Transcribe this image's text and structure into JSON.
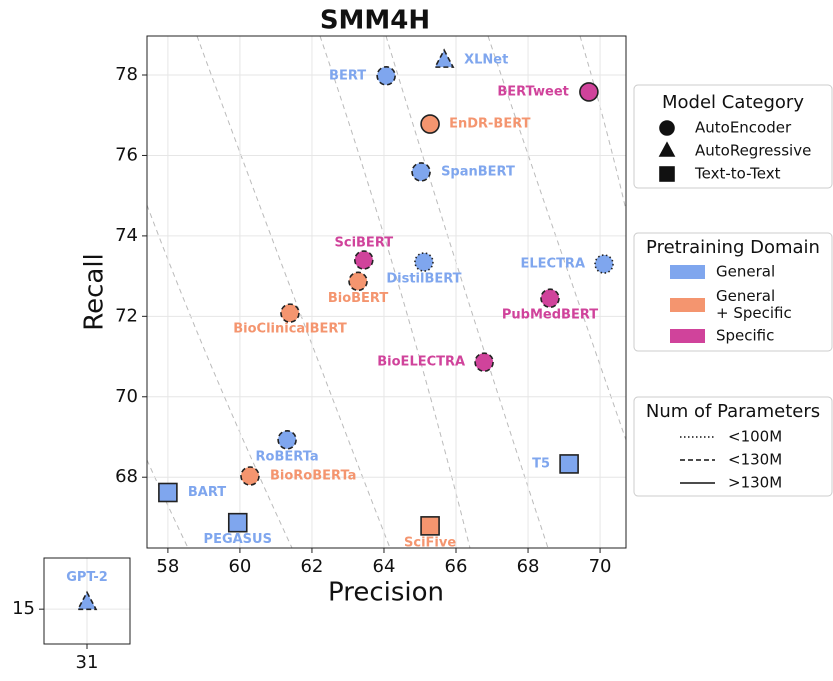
{
  "chart_data": {
    "type": "scatter",
    "title": "SMM4H",
    "xlabel": "Precision",
    "ylabel": "Recall",
    "xlim": [
      57.42,
      70.72
    ],
    "ylim": [
      66.24,
      78.97
    ],
    "xticks": [
      58,
      60,
      62,
      64,
      66,
      68,
      70
    ],
    "yticks": [
      68,
      70,
      72,
      74,
      76,
      78
    ],
    "grid": true,
    "domain_colors": {
      "General": "#7fa6ee",
      "General + Specific": "#f4956f",
      "Specific": "#d0439b"
    },
    "points": [
      {
        "name": "BERT",
        "x": 64.06,
        "y": 77.98,
        "shape": "circle",
        "domain": "General",
        "params": "dashed"
      },
      {
        "name": "XLNet",
        "x": 65.67,
        "y": 78.37,
        "shape": "triangle",
        "domain": "General",
        "params": "dashed"
      },
      {
        "name": "BERTweet",
        "x": 69.69,
        "y": 77.58,
        "shape": "circle",
        "domain": "Specific",
        "params": "solid"
      },
      {
        "name": "EnDR-BERT",
        "x": 65.28,
        "y": 76.78,
        "shape": "circle",
        "domain": "General + Specific",
        "params": "solid"
      },
      {
        "name": "SpanBERT",
        "x": 65.03,
        "y": 75.59,
        "shape": "circle",
        "domain": "General",
        "params": "dashed"
      },
      {
        "name": "SciBERT",
        "x": 63.44,
        "y": 73.4,
        "shape": "circle",
        "domain": "Specific",
        "params": "dashed"
      },
      {
        "name": "DistilBERT",
        "x": 65.11,
        "y": 73.35,
        "shape": "circle",
        "domain": "General",
        "params": "dotted"
      },
      {
        "name": "ELECTRA",
        "x": 70.11,
        "y": 73.3,
        "shape": "circle",
        "domain": "General",
        "params": "dotted"
      },
      {
        "name": "BioBERT",
        "x": 63.28,
        "y": 72.87,
        "shape": "circle",
        "domain": "General + Specific",
        "params": "dashed"
      },
      {
        "name": "PubMedBERT",
        "x": 68.61,
        "y": 72.45,
        "shape": "circle",
        "domain": "Specific",
        "params": "dashed"
      },
      {
        "name": "BioClinicalBERT",
        "x": 61.39,
        "y": 72.08,
        "shape": "circle",
        "domain": "General + Specific",
        "params": "dashed"
      },
      {
        "name": "BioELECTRA",
        "x": 66.78,
        "y": 70.86,
        "shape": "circle",
        "domain": "Specific",
        "params": "dashed"
      },
      {
        "name": "RoBERTa",
        "x": 61.31,
        "y": 68.93,
        "shape": "circle",
        "domain": "General",
        "params": "dashed"
      },
      {
        "name": "BioRoBERTa",
        "x": 60.28,
        "y": 68.03,
        "shape": "circle",
        "domain": "General + Specific",
        "params": "dashed"
      },
      {
        "name": "T5",
        "x": 69.14,
        "y": 68.33,
        "shape": "square",
        "domain": "General",
        "params": "solid"
      },
      {
        "name": "BART",
        "x": 58.0,
        "y": 67.62,
        "shape": "square",
        "domain": "General",
        "params": "solid"
      },
      {
        "name": "PEGASUS",
        "x": 59.94,
        "y": 66.87,
        "shape": "square",
        "domain": "General",
        "params": "solid"
      },
      {
        "name": "SciFive",
        "x": 65.28,
        "y": 66.79,
        "shape": "square",
        "domain": "General + Specific",
        "params": "solid"
      }
    ],
    "inset": {
      "xlim": [
        30,
        32
      ],
      "ylim": [
        14.19,
        16.19
      ],
      "xticks": [
        31
      ],
      "yticks": [
        15
      ],
      "points": [
        {
          "name": "GPT-2",
          "x": 31,
          "y": 15.16,
          "shape": "triangle",
          "domain": "General",
          "params": "dashed"
        }
      ]
    },
    "legends": {
      "category": {
        "title": "Model Category",
        "items": [
          {
            "label": "AutoEncoder",
            "shape": "circle"
          },
          {
            "label": "AutoRegressive",
            "shape": "triangle"
          },
          {
            "label": "Text-to-Text",
            "shape": "square"
          }
        ]
      },
      "domain": {
        "title": "Pretraining Domain",
        "items": [
          {
            "lines": [
              "General"
            ],
            "domain": "General"
          },
          {
            "lines": [
              "General",
              "+ Specific"
            ],
            "domain": "General + Specific"
          },
          {
            "lines": [
              "Specific"
            ],
            "domain": "Specific"
          }
        ]
      },
      "params": {
        "title": "Num of Parameters",
        "items": [
          {
            "label": "<100M",
            "style": "dotted"
          },
          {
            "label": "<130M",
            "style": "dashed"
          },
          {
            "label": ">130M",
            "style": "solid"
          }
        ]
      }
    }
  }
}
